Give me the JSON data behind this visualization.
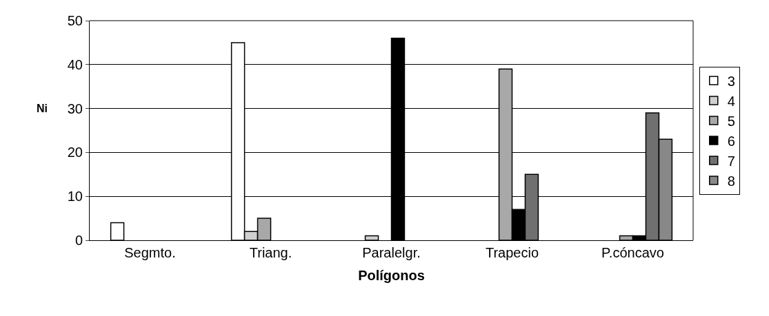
{
  "chart_data": {
    "type": "bar",
    "xlabel": "Polígonos",
    "ylabel": "Ni",
    "categories": [
      "Segmto.",
      "Triang.",
      "Paralelgr.",
      "Trapecio",
      "P.cóncavo"
    ],
    "series": [
      {
        "name": "3",
        "color": "#ffffff",
        "values": [
          4,
          45,
          null,
          null,
          null
        ]
      },
      {
        "name": "4",
        "color": "#d0d0d0",
        "values": [
          null,
          2,
          1,
          null,
          null
        ]
      },
      {
        "name": "5",
        "color": "#a8a8a8",
        "values": [
          null,
          5,
          null,
          39,
          1
        ]
      },
      {
        "name": "6",
        "color": "#000000",
        "values": [
          null,
          null,
          46,
          7,
          1
        ]
      },
      {
        "name": "7",
        "color": "#707070",
        "values": [
          null,
          null,
          null,
          15,
          29
        ]
      },
      {
        "name": "8",
        "color": "#888888",
        "values": [
          null,
          null,
          null,
          null,
          23
        ]
      }
    ],
    "ylim": [
      0,
      50
    ],
    "yticks": [
      0,
      10,
      20,
      30,
      40,
      50
    ],
    "grid": "y",
    "legend": "right"
  }
}
